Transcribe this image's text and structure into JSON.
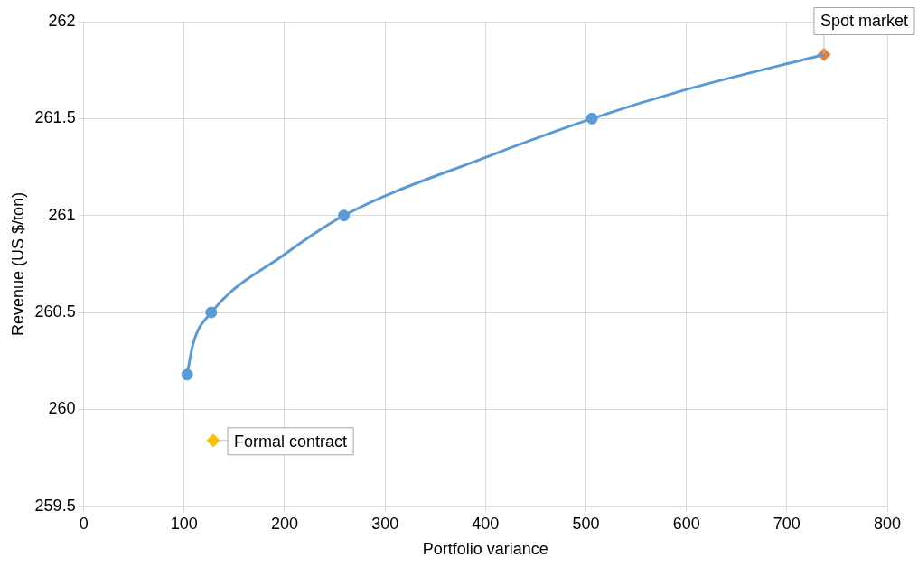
{
  "chart_data": {
    "type": "line",
    "xlabel": "Portfolio variance",
    "ylabel": "Revenue (US $/ton)",
    "xlim": [
      0,
      800
    ],
    "xticks": [
      0,
      100,
      200,
      300,
      400,
      500,
      600,
      700,
      800
    ],
    "ylim": [
      259.5,
      262
    ],
    "yticks": [
      259.5,
      260,
      260.5,
      261,
      261.5,
      262
    ],
    "grid": true,
    "legend": false,
    "series": [
      {
        "marker": "none",
        "color": "#5b9bd5",
        "x": [
          103,
          109,
          127,
          200,
          259,
          400,
          506,
          600,
          737
        ],
        "values": [
          260.18,
          260.34,
          260.5,
          260.8,
          261,
          261.3,
          261.5,
          261.65,
          261.83
        ]
      },
      {
        "type": "scatter",
        "marker": "circle",
        "color": "#5b9bd5",
        "x": [
          103,
          127,
          259,
          506
        ],
        "values": [
          260.18,
          260.5,
          261,
          261.5
        ]
      },
      {
        "type": "scatter",
        "marker": "diamond",
        "color": "#ed7d31",
        "x": [
          737
        ],
        "values": [
          261.83
        ]
      },
      {
        "type": "scatter",
        "marker": "diamond",
        "color": "#ffc000",
        "x": [
          129
        ],
        "values": [
          259.84
        ]
      }
    ],
    "annotations": [
      {
        "text": "Spot market",
        "x": 737,
        "y": 261.83
      },
      {
        "text": "Formal contract",
        "x": 129,
        "y": 259.84
      }
    ]
  }
}
